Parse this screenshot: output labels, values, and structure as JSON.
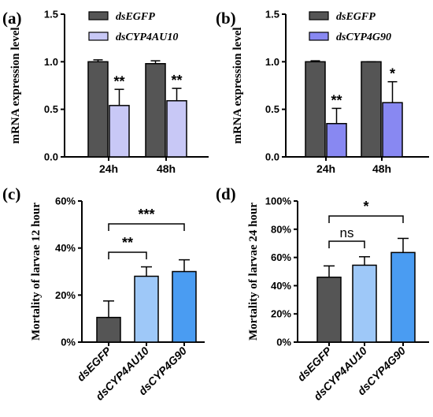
{
  "chart_data": [
    {
      "panel": "(a)",
      "type": "bar",
      "ylabel": "mRNA expression level",
      "ylim": [
        0,
        1.5
      ],
      "yticks": [
        "0.0",
        "0.5",
        "1.0",
        "1.5"
      ],
      "categories": [
        "24h",
        "48h"
      ],
      "series": [
        {
          "name": "dsEGFP",
          "color": "#555555",
          "values": [
            1.0,
            0.98
          ],
          "errors": [
            0.02,
            0.03
          ]
        },
        {
          "name": "dsCYP4AU10",
          "color": "#c8c8f6",
          "values": [
            0.54,
            0.59
          ],
          "errors": [
            0.17,
            0.13
          ]
        }
      ],
      "annotations": [
        "**",
        "**"
      ]
    },
    {
      "panel": "(b)",
      "type": "bar",
      "ylabel": "mRNA expression level",
      "ylim": [
        0,
        1.5
      ],
      "yticks": [
        "0.0",
        "0.5",
        "1.0",
        "1.5"
      ],
      "categories": [
        "24h",
        "48h"
      ],
      "series": [
        {
          "name": "dsEGFP",
          "color": "#555555",
          "values": [
            1.0,
            1.0
          ],
          "errors": [
            0.01,
            0.0
          ]
        },
        {
          "name": "dsCYP4G90",
          "color": "#8888f2",
          "values": [
            0.35,
            0.57
          ],
          "errors": [
            0.16,
            0.22
          ]
        }
      ],
      "annotations": [
        "**",
        "*"
      ]
    },
    {
      "panel": "(c)",
      "type": "bar",
      "ylabel": "Mortality of larvae 12 hour",
      "ylim": [
        0,
        60
      ],
      "yticks": [
        "0%",
        "20%",
        "40%",
        "60%"
      ],
      "categories": [
        "dsEGFP",
        "dsCYP4AU10",
        "dsCYP4G90"
      ],
      "colors": [
        "#555555",
        "#9ec8f8",
        "#4a9cf2"
      ],
      "values": [
        10.5,
        28,
        30
      ],
      "errors": [
        7,
        4,
        5
      ],
      "comparisons": [
        {
          "from": 1,
          "to": 2,
          "label": "**"
        },
        {
          "from": 1,
          "to": 3,
          "label": "***"
        }
      ]
    },
    {
      "panel": "(d)",
      "type": "bar",
      "ylabel": "Mortality of larvae 24 hour",
      "ylim": [
        0,
        100
      ],
      "yticks": [
        "0%",
        "20%",
        "40%",
        "60%",
        "80%",
        "100%"
      ],
      "categories": [
        "dsEGFP",
        "dsCYP4AU10",
        "dsCYP4G90"
      ],
      "colors": [
        "#555555",
        "#9ec8f8",
        "#4a9cf2"
      ],
      "values": [
        46,
        54.5,
        63.5
      ],
      "errors": [
        8,
        6,
        10
      ],
      "comparisons": [
        {
          "from": 1,
          "to": 2,
          "label": "ns"
        },
        {
          "from": 1,
          "to": 3,
          "label": "*"
        }
      ]
    }
  ]
}
